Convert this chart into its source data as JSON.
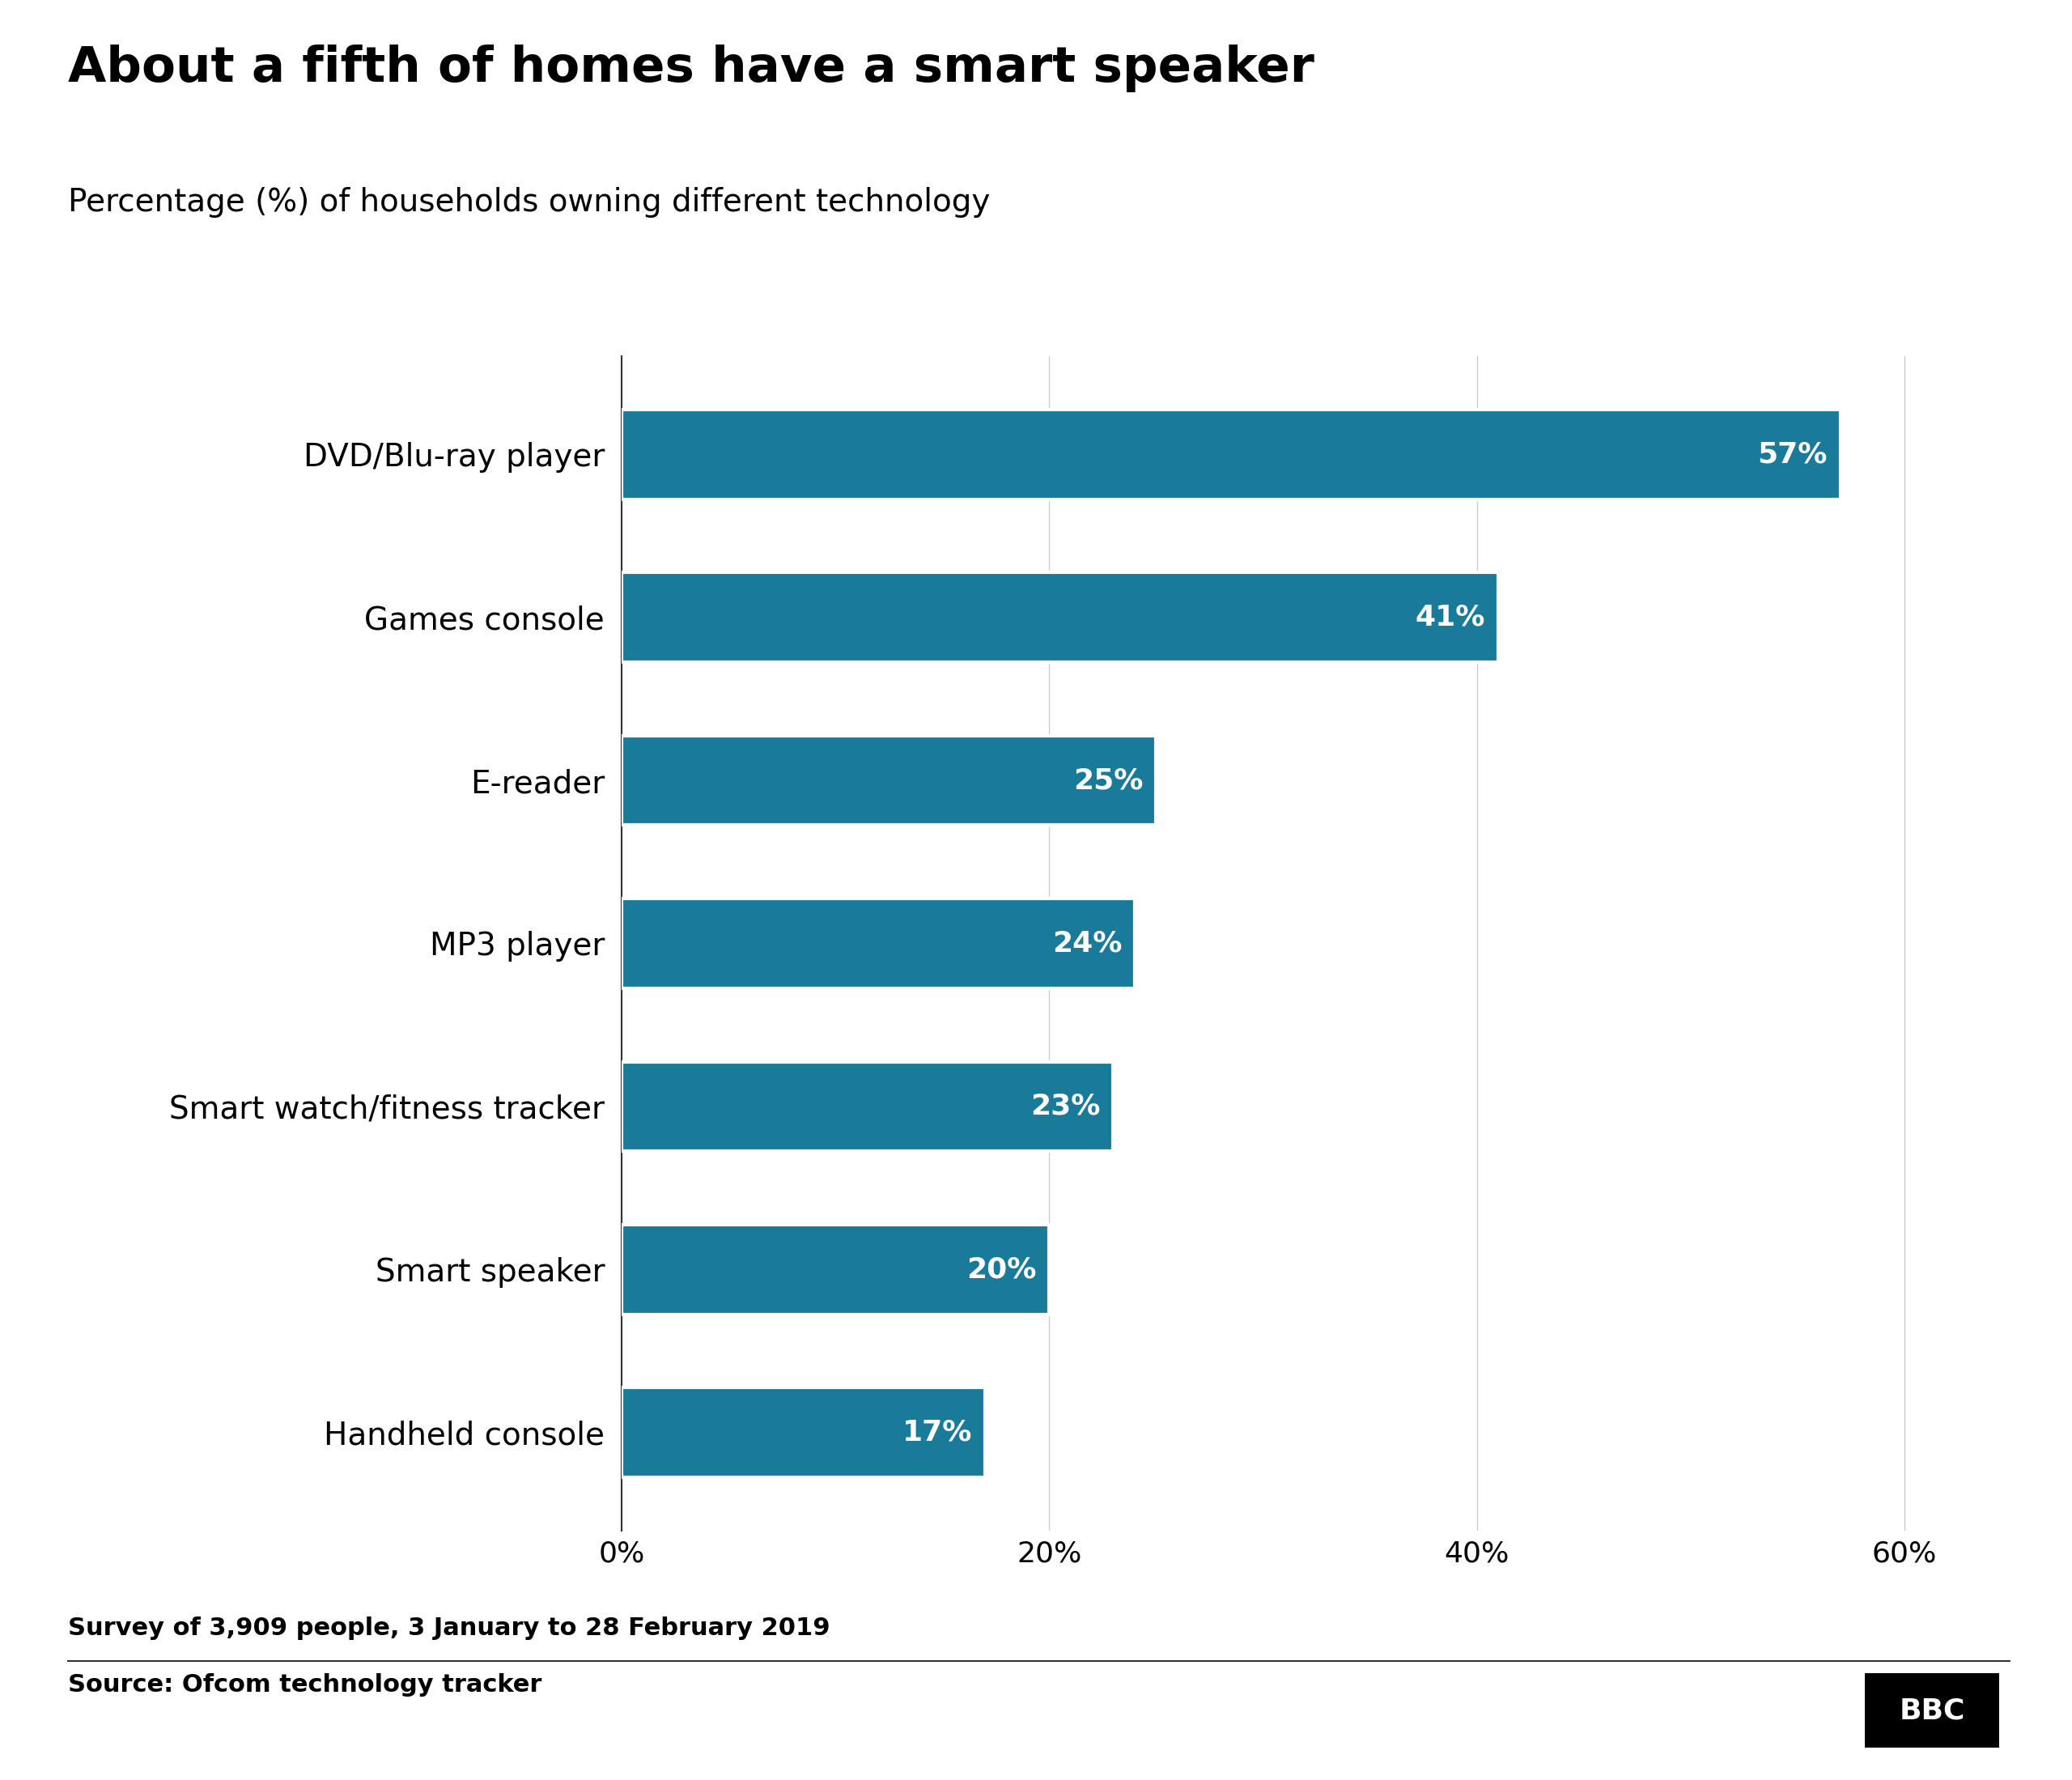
{
  "title": "About a fifth of homes have a smart speaker",
  "subtitle": "Percentage (%) of households owning different technology",
  "categories": [
    "DVD/Blu-ray player",
    "Games console",
    "E-reader",
    "MP3 player",
    "Smart watch/fitness tracker",
    "Smart speaker",
    "Handheld console"
  ],
  "values": [
    57,
    41,
    25,
    24,
    23,
    20,
    17
  ],
  "bar_color": "#1a7a99",
  "label_color": "#ffffff",
  "title_color": "#000000",
  "subtitle_color": "#000000",
  "background_color": "#ffffff",
  "survey_note": "Survey of 3,909 people, 3 January to 28 February 2019",
  "source": "Source: Ofcom technology tracker",
  "bbc_logo": "BBC",
  "xlim": [
    0,
    63
  ],
  "xticks": [
    0,
    20,
    40,
    60
  ],
  "xticklabels": [
    "0%",
    "20%",
    "40%",
    "60%"
  ],
  "title_fontsize": 44,
  "subtitle_fontsize": 28,
  "category_fontsize": 28,
  "tick_fontsize": 26,
  "bar_label_fontsize": 26,
  "note_fontsize": 22,
  "source_fontsize": 22,
  "bbc_fontsize": 26,
  "bar_height": 0.55
}
